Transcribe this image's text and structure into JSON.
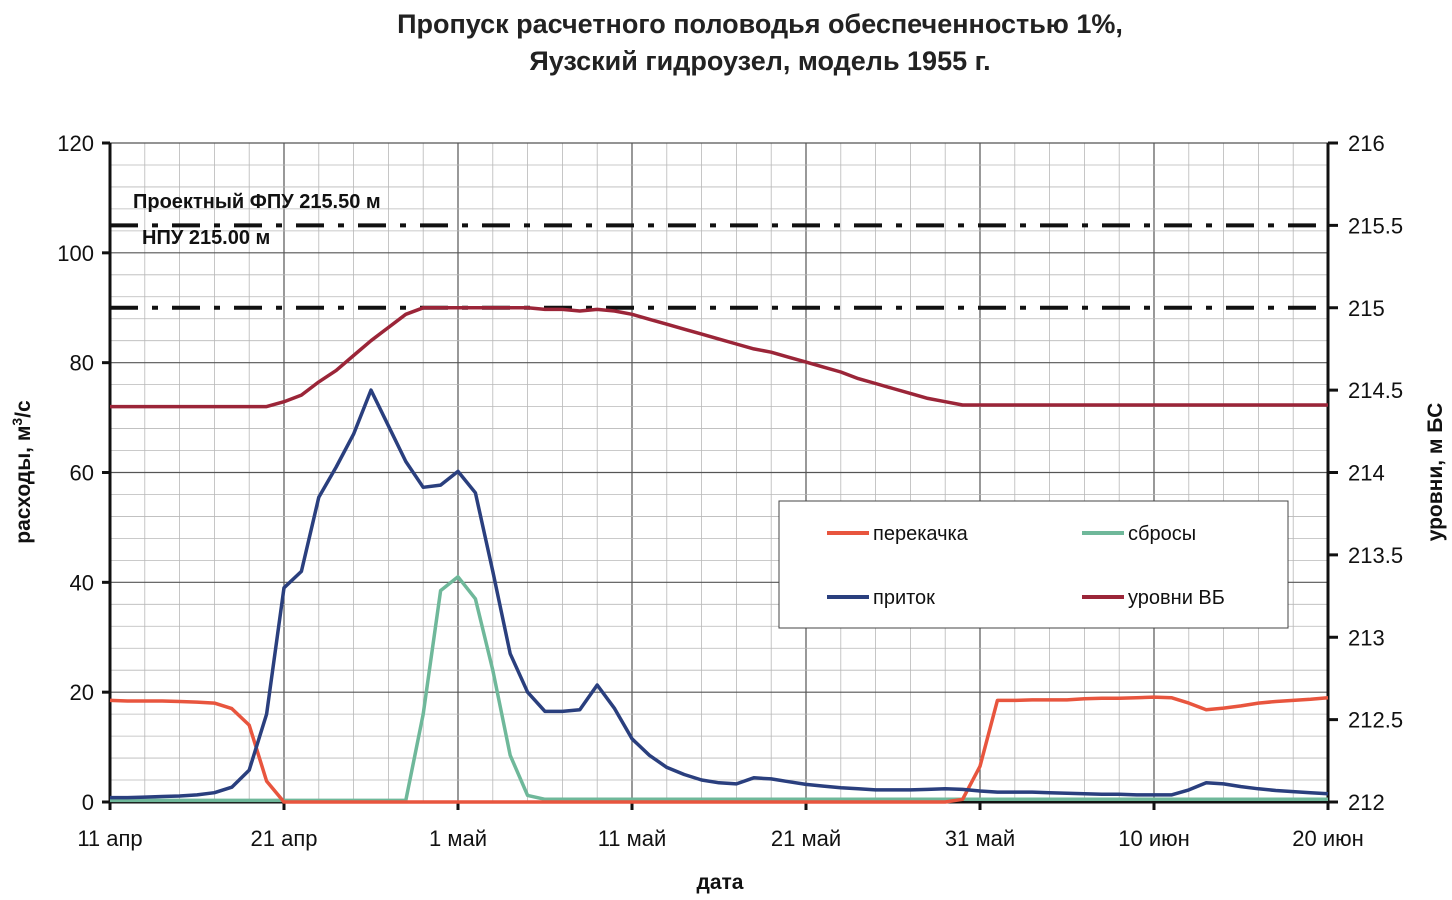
{
  "chart_data": {
    "type": "line",
    "title": "Пропуск расчетного половодья обеспеченностью 1%,",
    "subtitle": "Яузский гидроузел, модель 1955 г.",
    "xlabel": "дата",
    "ylabel": "расходы, м3/с",
    "ylabel_parts": {
      "base": "расходы, м",
      "sup": "3",
      "tail": "/с"
    },
    "y2label": "уровни, м БС",
    "x_start": "11 апр",
    "x_end": "20 июн",
    "x_ticks": [
      "11 апр",
      "21 апр",
      "1 май",
      "11 май",
      "21 май",
      "31 май",
      "10 июн",
      "20 июн"
    ],
    "ylim": [
      0,
      120
    ],
    "y_ticks": [
      "0",
      "20",
      "40",
      "60",
      "80",
      "100",
      "120"
    ],
    "y2lim": [
      212,
      216
    ],
    "y2_ticks": [
      "212",
      "212.5",
      "213",
      "213.5",
      "214",
      "214.5",
      "215",
      "215.5",
      "216"
    ],
    "grid": true,
    "legend_position": "center-right",
    "reference_lines": [
      {
        "label": "Проектный ФПУ 215.50 м",
        "value": 215.5,
        "axis": "right"
      },
      {
        "label": "НПУ 215.00 м",
        "value": 215.0,
        "axis": "right"
      }
    ],
    "series": [
      {
        "name": "перекачка",
        "axis": "left",
        "color": "#e8553e",
        "values": [
          18.5,
          18.4,
          18.4,
          18.4,
          18.3,
          18.2,
          18.0,
          17.0,
          14.0,
          3.8,
          0,
          0,
          0,
          0,
          0,
          0,
          0,
          0,
          0,
          0,
          0,
          0,
          0,
          0,
          0,
          0,
          0,
          0,
          0,
          0,
          0,
          0,
          0,
          0,
          0,
          0,
          0,
          0,
          0,
          0,
          0,
          0,
          0,
          0,
          0,
          0,
          0,
          0,
          0,
          0.5,
          6.5,
          18.5,
          18.5,
          18.6,
          18.6,
          18.6,
          18.8,
          18.9,
          18.9,
          19.0,
          19.1,
          19.0,
          18.0,
          16.8,
          17.1,
          17.5,
          18.0,
          18.3,
          18.5,
          18.7,
          19.0
        ]
      },
      {
        "name": "сбросы",
        "axis": "left",
        "color": "#6fb89a",
        "values": [
          0.3,
          0.3,
          0.3,
          0.3,
          0.3,
          0.3,
          0.3,
          0.3,
          0.3,
          0.3,
          0.3,
          0.3,
          0.3,
          0.3,
          0.3,
          0.3,
          0.3,
          0.3,
          16,
          38.5,
          41,
          37,
          24,
          8.5,
          1.2,
          0.5,
          0.5,
          0.5,
          0.5,
          0.5,
          0.5,
          0.5,
          0.5,
          0.5,
          0.5,
          0.5,
          0.5,
          0.5,
          0.5,
          0.5,
          0.5,
          0.5,
          0.5,
          0.5,
          0.5,
          0.5,
          0.5,
          0.5,
          0.5,
          0.5,
          0.5,
          0.5,
          0.5,
          0.5,
          0.5,
          0.5,
          0.5,
          0.5,
          0.5,
          0.5,
          0.5,
          0.5,
          0.5,
          0.5,
          0.5,
          0.5,
          0.5,
          0.5,
          0.5,
          0.5,
          0.5
        ]
      },
      {
        "name": "приток",
        "axis": "left",
        "color": "#2a3f7e",
        "values": [
          0.8,
          0.8,
          0.9,
          1.0,
          1.1,
          1.3,
          1.7,
          2.7,
          5.8,
          16,
          39,
          42,
          55.5,
          61,
          67,
          75,
          68.5,
          62,
          57.3,
          57.7,
          60.2,
          56.3,
          42,
          27,
          20,
          16.5,
          16.5,
          16.8,
          21.3,
          17,
          11.5,
          8.5,
          6.3,
          5.0,
          4.0,
          3.5,
          3.3,
          4.4,
          4.2,
          3.7,
          3.2,
          2.9,
          2.6,
          2.4,
          2.2,
          2.2,
          2.2,
          2.3,
          2.4,
          2.3,
          2.0,
          1.8,
          1.8,
          1.8,
          1.7,
          1.6,
          1.5,
          1.4,
          1.4,
          1.3,
          1.3,
          1.3,
          2.2,
          3.5,
          3.3,
          2.8,
          2.4,
          2.1,
          1.9,
          1.7,
          1.5
        ]
      },
      {
        "name": "уровни ВБ",
        "axis": "right",
        "color": "#9b2538",
        "values": [
          214.4,
          214.4,
          214.4,
          214.4,
          214.4,
          214.4,
          214.4,
          214.4,
          214.4,
          214.4,
          214.43,
          214.47,
          214.55,
          214.62,
          214.71,
          214.8,
          214.88,
          214.96,
          215.0,
          215.0,
          215.0,
          215.0,
          215.0,
          215.0,
          215.0,
          214.99,
          214.99,
          214.98,
          214.99,
          214.98,
          214.96,
          214.93,
          214.9,
          214.87,
          214.84,
          214.81,
          214.78,
          214.75,
          214.73,
          214.7,
          214.67,
          214.64,
          214.61,
          214.57,
          214.54,
          214.51,
          214.48,
          214.45,
          214.43,
          214.41,
          214.41,
          214.41,
          214.41,
          214.41,
          214.41,
          214.41,
          214.41,
          214.41,
          214.41,
          214.41,
          214.41,
          214.41,
          214.41,
          214.41,
          214.41,
          214.41,
          214.41,
          214.41,
          214.41,
          214.41,
          214.41
        ]
      }
    ]
  }
}
